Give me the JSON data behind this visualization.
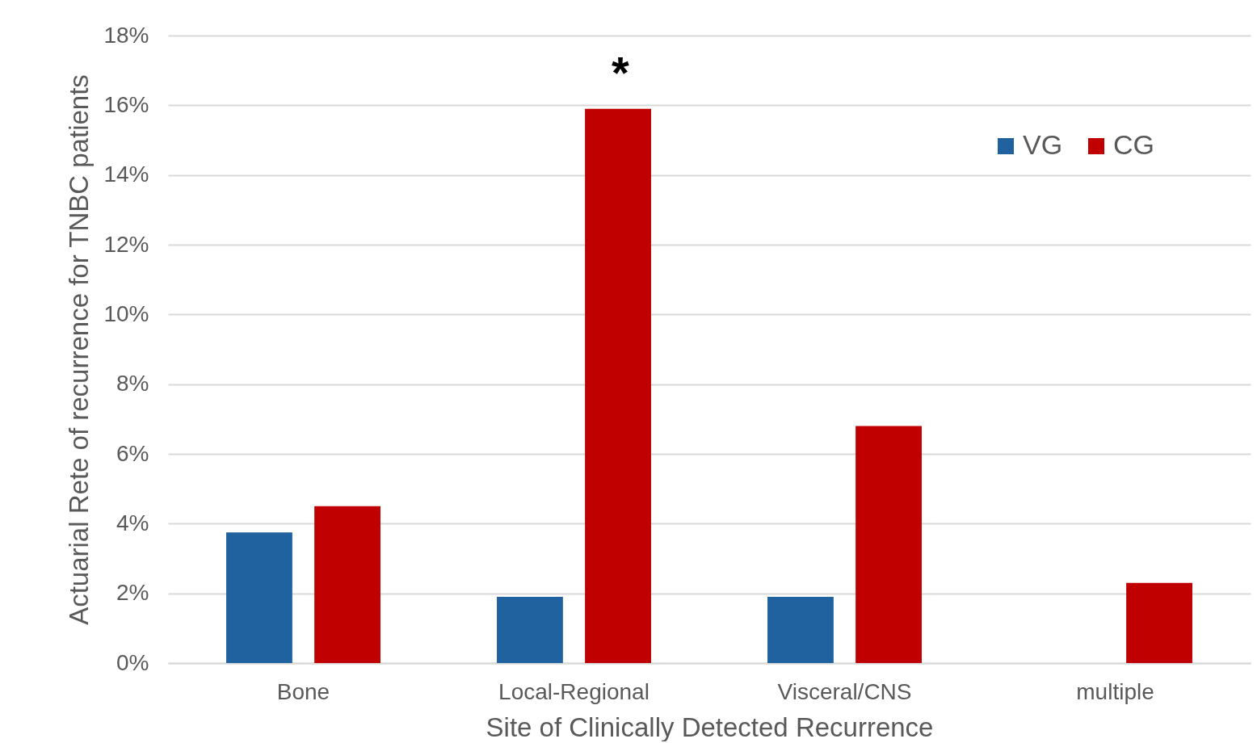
{
  "chart_data": {
    "type": "bar",
    "xlabel": "Site of Clinically Detected Recurrence",
    "ylabel": "Actuarial Rete of recurrence for TNBC patients",
    "categories": [
      "Bone",
      "Local-Regional",
      "Visceral/CNS",
      "multiple"
    ],
    "series": [
      {
        "name": "VG",
        "color": "#2062a0",
        "values": [
          3.75,
          1.9,
          1.9,
          0
        ]
      },
      {
        "name": "CG",
        "color": "#c00000",
        "values": [
          4.5,
          15.9,
          6.8,
          2.3
        ]
      }
    ],
    "ylim": [
      0,
      18
    ],
    "yticks": [
      {
        "value": 0,
        "label": "0%"
      },
      {
        "value": 2,
        "label": "2%"
      },
      {
        "value": 4,
        "label": "4%"
      },
      {
        "value": 6,
        "label": "6%"
      },
      {
        "value": 8,
        "label": "8%"
      },
      {
        "value": 10,
        "label": "10%"
      },
      {
        "value": 12,
        "label": "12%"
      },
      {
        "value": 14,
        "label": "14%"
      },
      {
        "value": 16,
        "label": "16%"
      },
      {
        "value": 18,
        "label": "18%"
      }
    ],
    "grid": "y",
    "legend": "top right",
    "annotations": [
      "*"
    ]
  }
}
